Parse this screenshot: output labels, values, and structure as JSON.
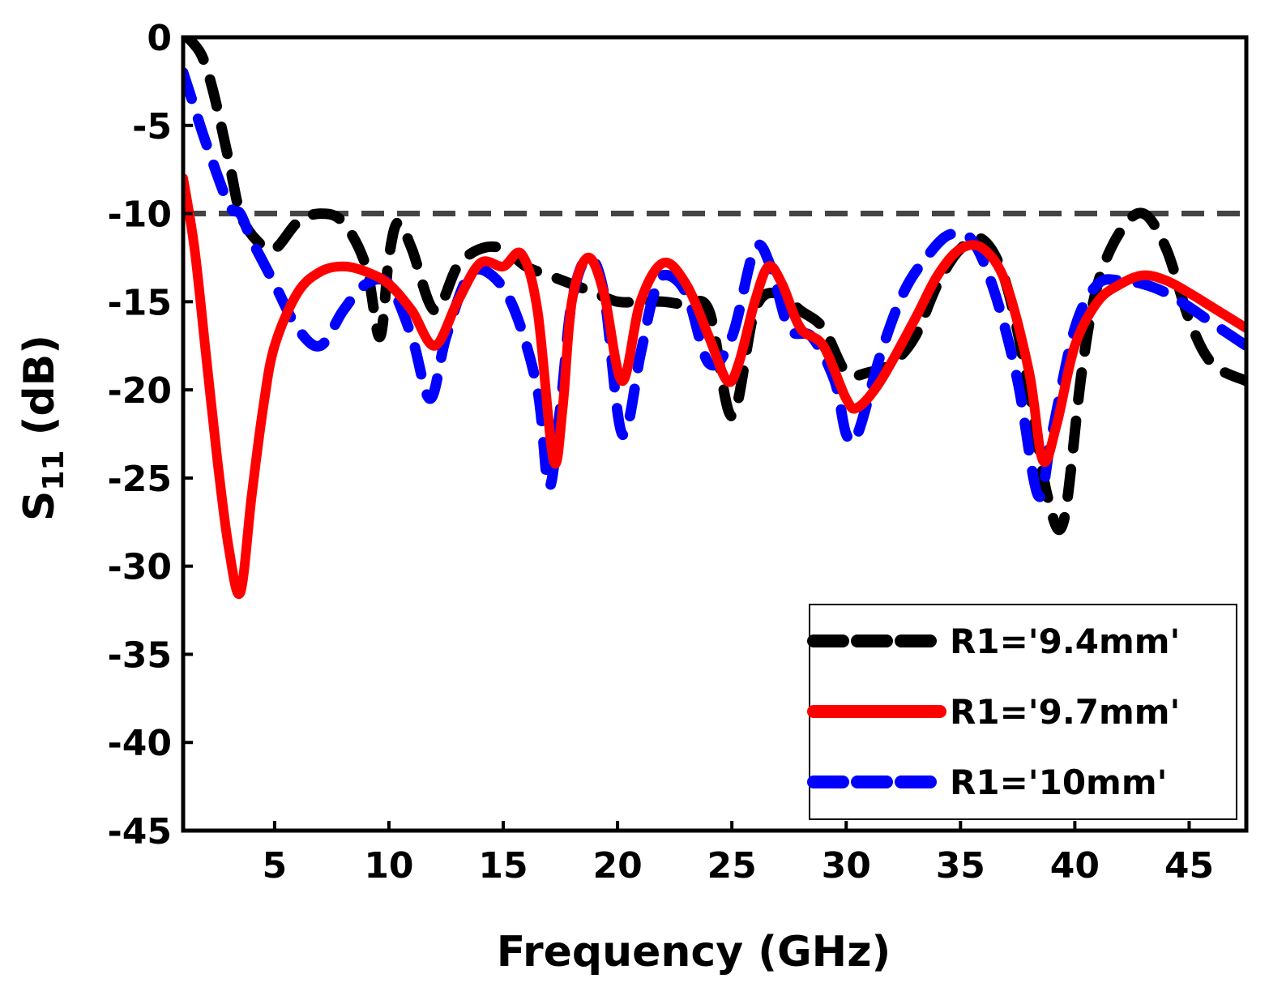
{
  "chart_data": {
    "type": "line",
    "title": "",
    "xlabel": "Frequency (GHz)",
    "ylabel_main": "S",
    "ylabel_sub": "11",
    "ylabel_unit": " (dB)",
    "xlim": [
      1,
      47.5
    ],
    "ylim": [
      -45,
      0
    ],
    "xticks": [
      5,
      10,
      15,
      20,
      25,
      30,
      35,
      40,
      45
    ],
    "xtick_labels": [
      "5",
      "10",
      "15",
      "20",
      "25",
      "30",
      "35",
      "40",
      "45"
    ],
    "yticks": [
      0,
      -5,
      -10,
      -15,
      -20,
      -25,
      -30,
      -35,
      -40,
      -45
    ],
    "ytick_labels": [
      "0",
      "-5",
      "-10",
      "-15",
      "-20",
      "-25",
      "-30",
      "-35",
      "-40",
      "-45"
    ],
    "grid": false,
    "legend_position": "bottom-right",
    "reference_line": {
      "y": -10,
      "color": "#444444"
    },
    "series": [
      {
        "name": "R1='9.4mm'",
        "color": "#000000",
        "style": "dashed",
        "x": [
          1.2,
          1.8,
          2.3,
          3.0,
          3.5,
          4.2,
          5.0,
          6.0,
          7.0,
          8.0,
          9.0,
          9.6,
          10.0,
          10.4,
          11.0,
          12.0,
          13.0,
          14.0,
          15.0,
          16.0,
          17.0,
          18.0,
          19.0,
          20.0,
          21.0,
          22.0,
          23.0,
          24.0,
          25.0,
          26.0,
          27.0,
          28.0,
          29.0,
          30.0,
          31.0,
          32.0,
          33.0,
          34.0,
          35.0,
          36.0,
          37.0,
          38.0,
          38.8,
          39.5,
          40.3,
          41.0,
          42.0,
          43.0,
          44.0,
          45.0,
          46.0,
          47.5
        ],
        "y": [
          0,
          -1,
          -3,
          -7,
          -10,
          -11.5,
          -12,
          -10.5,
          -10,
          -10.5,
          -13,
          -17,
          -12.5,
          -10.5,
          -12,
          -15.5,
          -13,
          -12,
          -12,
          -13,
          -13.5,
          -14,
          -14.5,
          -15,
          -15,
          -15,
          -15.2,
          -15.5,
          -21.5,
          -15.5,
          -14.5,
          -15.5,
          -16.5,
          -19,
          -19,
          -18.5,
          -17,
          -14,
          -12,
          -11.5,
          -14,
          -20,
          -26,
          -27.5,
          -19,
          -14,
          -11,
          -10,
          -12,
          -16,
          -18.5,
          -19.5
        ]
      },
      {
        "name": "R1='9.7mm'",
        "color": "#ff0000",
        "style": "solid",
        "x": [
          1.0,
          1.5,
          2.0,
          2.5,
          3.0,
          3.5,
          4.0,
          4.5,
          5.0,
          6.0,
          7.0,
          8.0,
          9.0,
          10.0,
          11.0,
          12.0,
          13.0,
          14.0,
          15.0,
          15.8,
          16.5,
          17.2,
          17.6,
          18.0,
          18.7,
          19.4,
          20.2,
          21.0,
          22.0,
          23.0,
          24.0,
          24.8,
          25.3,
          26.0,
          26.6,
          27.2,
          28.0,
          29.0,
          30.0,
          30.5,
          31.5,
          33.0,
          34.0,
          35.0,
          36.0,
          37.0,
          38.0,
          38.6,
          39.2,
          40.0,
          41.0,
          42.0,
          43.0,
          44.0,
          45.0,
          46.0,
          47.5
        ],
        "y": [
          -8,
          -12,
          -18,
          -24,
          -29,
          -31.5,
          -26,
          -21,
          -17.5,
          -14.5,
          -13.3,
          -13,
          -13.3,
          -14,
          -15.5,
          -17.5,
          -15,
          -12.8,
          -13,
          -12.3,
          -15.5,
          -24,
          -21,
          -15,
          -12.5,
          -14.5,
          -19.5,
          -15,
          -12.8,
          -14,
          -17,
          -19.5,
          -18.5,
          -15,
          -13,
          -14,
          -16.5,
          -17.5,
          -20.5,
          -21,
          -19.5,
          -16,
          -13.5,
          -12,
          -12,
          -14,
          -19,
          -24,
          -22,
          -17.5,
          -15,
          -14,
          -13.5,
          -13.8,
          -14.5,
          -15.3,
          -16.5
        ]
      },
      {
        "name": "R1='10mm'",
        "color": "#0000ff",
        "style": "dashed",
        "x": [
          1.0,
          1.5,
          2.0,
          3.0,
          3.5,
          4.0,
          5.0,
          6.0,
          7.0,
          8.0,
          9.0,
          10.0,
          11.0,
          11.8,
          12.5,
          13.5,
          14.5,
          15.5,
          16.5,
          17.0,
          17.5,
          18.0,
          18.7,
          19.4,
          20.2,
          21.0,
          21.5,
          22.0,
          23.0,
          24.0,
          25.0,
          26.0,
          26.7,
          27.5,
          28.5,
          29.5,
          30.0,
          30.5,
          31.5,
          32.5,
          33.5,
          34.5,
          35.5,
          36.5,
          37.5,
          38.4,
          39.0,
          40.0,
          41.0,
          42.0,
          43.0,
          44.0,
          45.0,
          46.0,
          47.5
        ],
        "y": [
          -2,
          -4,
          -6,
          -9.5,
          -10,
          -11.5,
          -14,
          -16.5,
          -17.5,
          -15.5,
          -14,
          -14,
          -17,
          -20.5,
          -17,
          -13.5,
          -13.5,
          -15.5,
          -20,
          -25.5,
          -21,
          -15,
          -12.5,
          -14.5,
          -22.5,
          -18,
          -15,
          -13.5,
          -14.5,
          -18.5,
          -17,
          -12,
          -13,
          -16.5,
          -17,
          -19.5,
          -22.5,
          -22.5,
          -18,
          -14.5,
          -12.5,
          -11.2,
          -11.5,
          -14.5,
          -19.5,
          -26,
          -22.5,
          -16.5,
          -14,
          -13.8,
          -14,
          -14.5,
          -15.3,
          -16.2,
          -17.5
        ]
      }
    ]
  }
}
